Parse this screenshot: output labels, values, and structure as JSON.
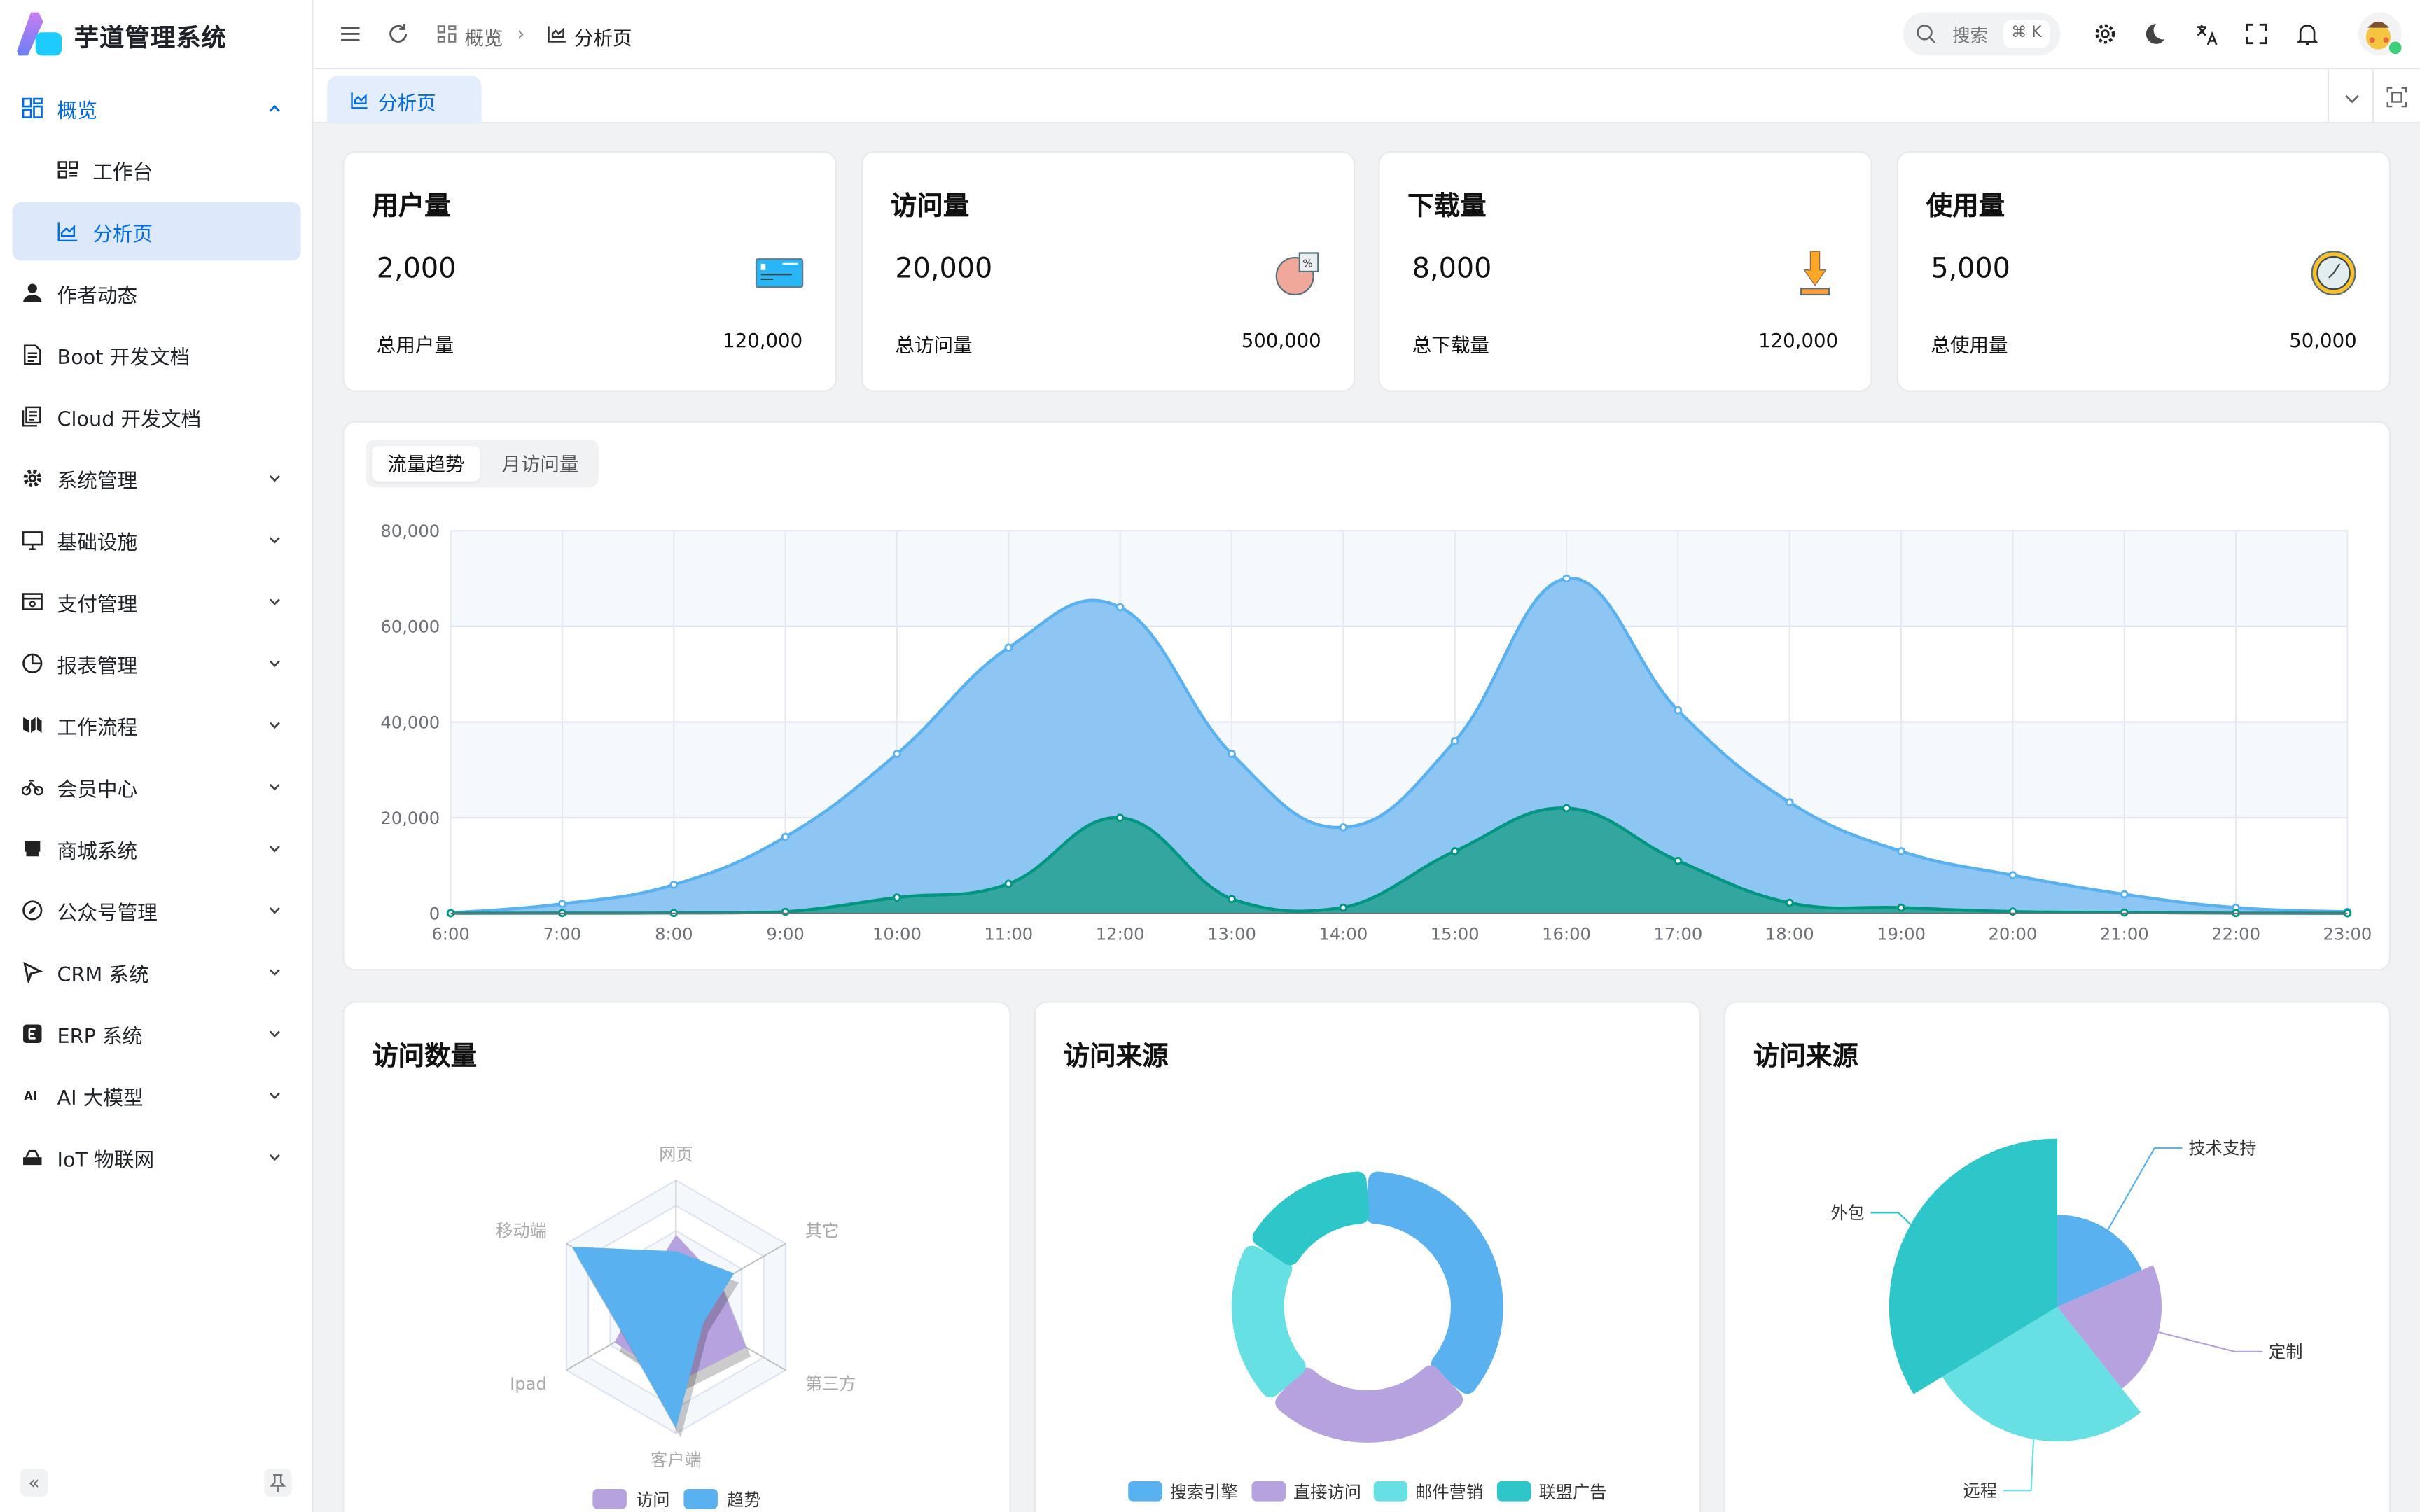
{
  "app": {
    "title": "芋道管理系统"
  },
  "sidebar": {
    "items": [
      {
        "label": "概览",
        "icon": "dashboard-grid-icon",
        "state": "open",
        "level": 0,
        "chevron": "up"
      },
      {
        "label": "工作台",
        "icon": "workspace-icon",
        "level": 1
      },
      {
        "label": "分析页",
        "icon": "analytics-chart-icon",
        "level": 1,
        "selected": true
      },
      {
        "label": "作者动态",
        "icon": "user-icon",
        "level": 0
      },
      {
        "label": "Boot 开发文档",
        "icon": "document-icon",
        "level": 0
      },
      {
        "label": "Cloud 开发文档",
        "icon": "documents-icon",
        "level": 0
      },
      {
        "label": "系统管理",
        "icon": "gear-icon",
        "level": 0,
        "chevron": "down"
      },
      {
        "label": "基础设施",
        "icon": "monitor-icon",
        "level": 0,
        "chevron": "down"
      },
      {
        "label": "支付管理",
        "icon": "payment-icon",
        "level": 0,
        "chevron": "down"
      },
      {
        "label": "报表管理",
        "icon": "pie-report-icon",
        "level": 0,
        "chevron": "down"
      },
      {
        "label": "工作流程",
        "icon": "workflow-icon",
        "level": 0,
        "chevron": "down"
      },
      {
        "label": "会员中心",
        "icon": "bicycle-icon",
        "level": 0,
        "chevron": "down"
      },
      {
        "label": "商城系统",
        "icon": "shop-icon",
        "level": 0,
        "chevron": "down"
      },
      {
        "label": "公众号管理",
        "icon": "compass-icon",
        "level": 0,
        "chevron": "down"
      },
      {
        "label": "CRM 系统",
        "icon": "crm-icon",
        "level": 0,
        "chevron": "down"
      },
      {
        "label": "ERP 系统",
        "icon": "erp-icon",
        "level": 0,
        "chevron": "down"
      },
      {
        "label": "AI 大模型",
        "icon": "ai-icon",
        "level": 0,
        "chevron": "down"
      },
      {
        "label": "IoT 物联网",
        "icon": "router-icon",
        "level": 0,
        "chevron": "down"
      }
    ]
  },
  "header": {
    "breadcrumb": [
      {
        "label": "概览",
        "icon": "dashboard-grid-icon"
      },
      {
        "label": "分析页",
        "icon": "analytics-chart-icon"
      }
    ],
    "search": {
      "placeholder": "搜索",
      "shortcut": "⌘ K"
    }
  },
  "tabs": [
    {
      "label": "分析页",
      "icon": "analytics-chart-icon",
      "active": true
    }
  ],
  "colors": {
    "accent": "#006be6",
    "blue": "#5ab1ef",
    "purple": "#b6a2de",
    "cyan": "#67e0e3",
    "teal": "#2ec7c9",
    "green": "#019680"
  },
  "stats": [
    {
      "title": "用户量",
      "value": "2,000",
      "total_label": "总用户量",
      "total": "120,000",
      "icon": "credit-card-icon"
    },
    {
      "title": "访问量",
      "value": "20,000",
      "total_label": "总访问量",
      "total": "500,000",
      "icon": "pie-percent-icon"
    },
    {
      "title": "下载量",
      "value": "8,000",
      "total_label": "总下载量",
      "total": "120,000",
      "icon": "download-icon"
    },
    {
      "title": "使用量",
      "value": "5,000",
      "total_label": "总使用量",
      "total": "50,000",
      "icon": "clock-icon"
    }
  ],
  "trend": {
    "tabs": [
      {
        "label": "流量趋势",
        "active": true
      },
      {
        "label": "月访问量",
        "active": false
      }
    ]
  },
  "panels": {
    "visits_title": "访问数量",
    "source_title_1": "访问来源",
    "source_title_2": "访问来源"
  },
  "chart_data": [
    {
      "type": "area",
      "x": [
        "6:00",
        "7:00",
        "8:00",
        "9:00",
        "10:00",
        "11:00",
        "12:00",
        "13:00",
        "14:00",
        "15:00",
        "16:00",
        "17:00",
        "18:00",
        "19:00",
        "20:00",
        "21:00",
        "22:00",
        "23:00"
      ],
      "yticks": [
        "0",
        "20,000",
        "40,000",
        "60,000",
        "80,000"
      ],
      "ylim": [
        0,
        80000
      ],
      "grid": true,
      "series": [
        {
          "values": [
            111,
            2000,
            6000,
            16000,
            33333,
            55555,
            64000,
            33333,
            18000,
            36000,
            70000,
            42444,
            23222,
            13000,
            8000,
            4000,
            1200,
            333
          ],
          "color": "#5ab1ef"
        },
        {
          "values": [
            33,
            66,
            88,
            333,
            3333,
            6200,
            20000,
            3000,
            1200,
            13000,
            22000,
            11000,
            2221,
            1201,
            390,
            198,
            60,
            30
          ],
          "color": "#019680"
        }
      ]
    },
    {
      "type": "radar",
      "indicators": [
        "网页",
        "移动端",
        "Ipad",
        "客户端",
        "第三方",
        "其它"
      ],
      "max": 100,
      "series": [
        {
          "name": "访问",
          "values": [
            57,
            30,
            56,
            60,
            64,
            40
          ],
          "color": "#b6a2de"
        },
        {
          "name": "趋势",
          "values": [
            44,
            95,
            47,
            96,
            25,
            53
          ],
          "color": "#5ab1ef"
        }
      ],
      "legend": "bottom"
    },
    {
      "type": "pie",
      "variant": "donut",
      "slices": [
        {
          "name": "搜索引擎",
          "value": 1048,
          "color": "#5ab1ef"
        },
        {
          "name": "直接访问",
          "value": 735,
          "color": "#b6a2de"
        },
        {
          "name": "邮件营销",
          "value": 580,
          "color": "#67e0e3"
        },
        {
          "name": "联盟广告",
          "value": 484,
          "color": "#2ec7c9"
        }
      ],
      "legend": "bottom"
    },
    {
      "type": "pie",
      "variant": "rose",
      "slices": [
        {
          "name": "技术支持",
          "value": 274,
          "color": "#5ab1ef"
        },
        {
          "name": "定制",
          "value": 310,
          "color": "#b6a2de"
        },
        {
          "name": "远程",
          "value": 400,
          "color": "#67e0e3"
        },
        {
          "name": "外包",
          "value": 500,
          "color": "#2ec7c9"
        }
      ]
    }
  ]
}
